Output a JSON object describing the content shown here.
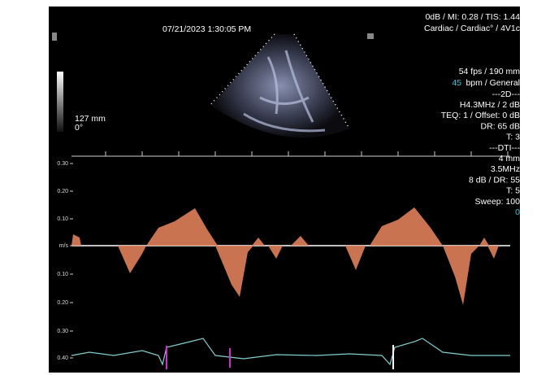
{
  "header": {
    "date": "07/21/2023 1:30:05 PM",
    "status": [
      "0dB / MI: 0.28 / TIS: 1.44",
      "Cardiac / Cardiac° / 4V1c"
    ]
  },
  "image_info": {
    "depth": "127 mm",
    "angle": "0°"
  },
  "settings": {
    "frame": "54 fps / 190 mm",
    "heart_rate": "45",
    "heart_rate_mode": "bpm / General",
    "lines": [
      "---2D---",
      "H4.3MHz / 2 dB",
      "TEQ: 1 / Offset: 0 dB",
      "DR: 65 dB",
      "T: 3",
      "---DTI---",
      "4 mm",
      "3.5MHz",
      "8 dB / DR: 55",
      "T: 5",
      "Sweep: 100"
    ],
    "indicator": "0"
  },
  "velocity_scale": {
    "labels": [
      "0.30",
      "0.20",
      "0.10",
      "m/s",
      "0.10",
      "0.20",
      "0.30",
      "0.40"
    ]
  }
}
